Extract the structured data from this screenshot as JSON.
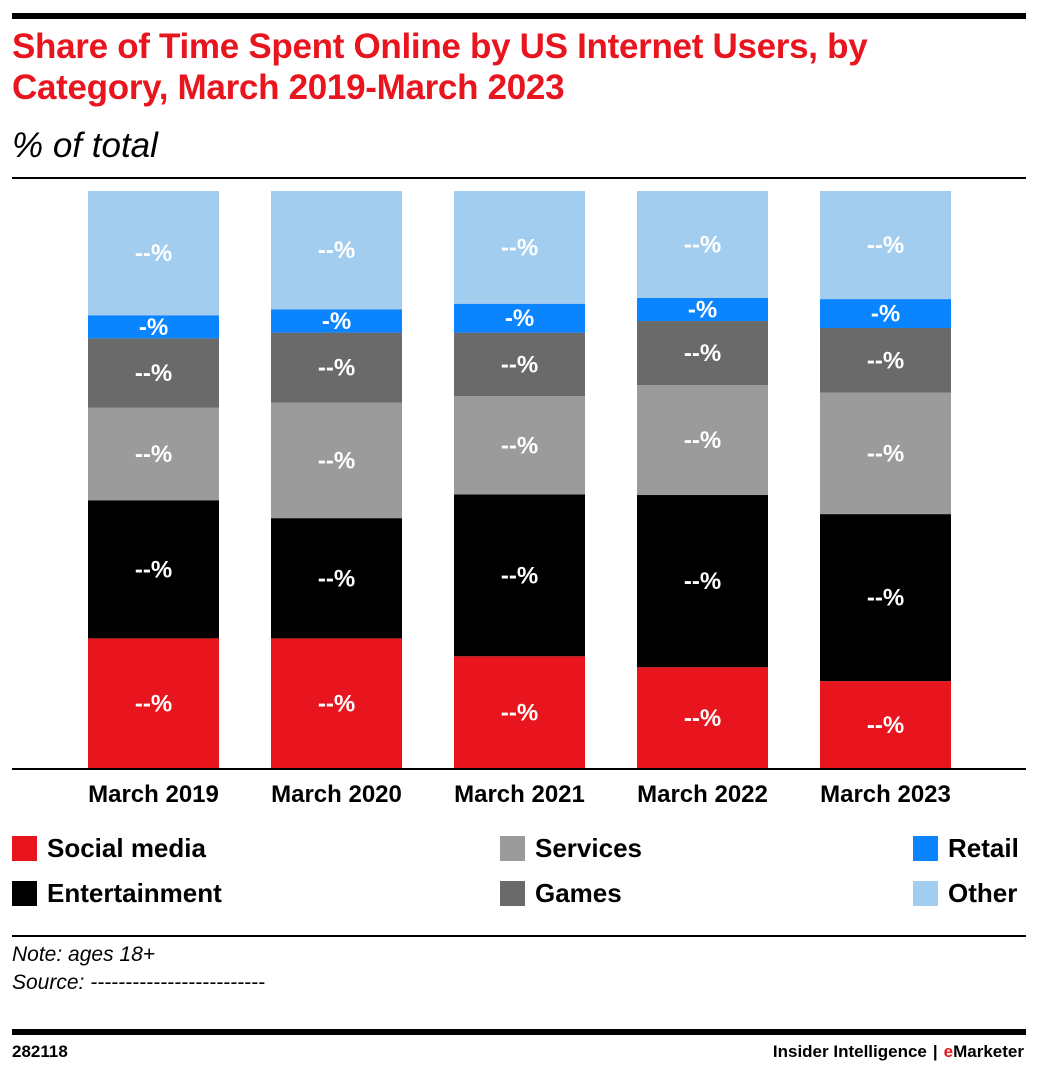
{
  "header": {
    "title": "Share of Time Spent Online by US Internet Users, by Category, March 2019-March 2023",
    "subtitle": "% of total"
  },
  "chart_data": {
    "type": "bar",
    "stacked": true,
    "normalized_to": 100,
    "categories": [
      "March 2019",
      "March 2020",
      "March 2021",
      "March 2022",
      "March 2023"
    ],
    "series": [
      {
        "name": "Social media",
        "color": "#e8141e",
        "values": [
          22.6,
          22.6,
          19.5,
          17.6,
          15.2
        ],
        "labels": [
          "--%",
          "--%",
          "--%",
          "--%",
          "--%"
        ]
      },
      {
        "name": "Entertainment",
        "color": "#000000",
        "values": [
          23.9,
          20.8,
          28.0,
          29.8,
          28.9
        ],
        "labels": [
          "--%",
          "--%",
          "--%",
          "--%",
          "--%"
        ]
      },
      {
        "name": "Services",
        "color": "#9b9b9b",
        "values": [
          16.0,
          20.0,
          17.0,
          19.0,
          21.0
        ],
        "labels": [
          "--%",
          "--%",
          "--%",
          "--%",
          "--%"
        ]
      },
      {
        "name": "Games",
        "color": "#6a6a6a",
        "values": [
          12.0,
          12.1,
          11.0,
          11.1,
          11.2
        ],
        "labels": [
          "--%",
          "--%",
          "--%",
          "--%",
          "--%"
        ]
      },
      {
        "name": "Retail",
        "color": "#0a84ff",
        "values": [
          4.0,
          4.0,
          5.0,
          4.0,
          5.0
        ],
        "labels": [
          "-%",
          "-%",
          "-%",
          "-%",
          "-%"
        ]
      },
      {
        "name": "Other",
        "color": "#a2cdee",
        "values": [
          21.5,
          20.5,
          19.5,
          18.5,
          18.7
        ],
        "labels": [
          "--%",
          "--%",
          "--%",
          "--%",
          "--%"
        ]
      }
    ],
    "legend_placement": "bottom",
    "grid": false
  },
  "legend": {
    "items": [
      {
        "label": "Social media",
        "color": "#e8141e"
      },
      {
        "label": "Services",
        "color": "#9b9b9b"
      },
      {
        "label": "Retail",
        "color": "#0a84ff"
      },
      {
        "label": "Entertainment",
        "color": "#000000"
      },
      {
        "label": "Games",
        "color": "#6a6a6a"
      },
      {
        "label": "Other",
        "color": "#a2cdee"
      }
    ]
  },
  "notes": {
    "note": "Note: ages 18+",
    "source": "Source: -------------------------"
  },
  "footer": {
    "chart_id": "282118",
    "brand": "Insider Intelligence",
    "separator": "|",
    "brand_accent_prefix": "e",
    "brand_accent_rest": "Marketer"
  }
}
